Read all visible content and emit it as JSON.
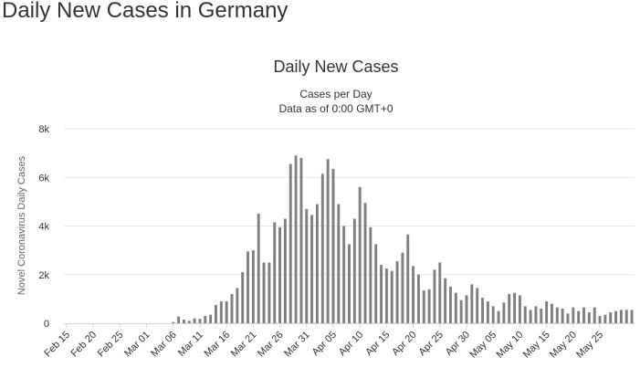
{
  "page": {
    "heading": "Daily New Cases in Germany"
  },
  "chart_data": {
    "type": "bar",
    "title": "Daily New Cases",
    "subtitle": [
      "Cases per Day",
      "Data as of 0:00 GMT+0"
    ],
    "xlabel": "",
    "ylabel": "Novel Coronavirus Daily Cases",
    "ylim": [
      0,
      8000
    ],
    "yticks": [
      {
        "value": 0,
        "label": "0"
      },
      {
        "value": 2000,
        "label": "2k"
      },
      {
        "value": 4000,
        "label": "4k"
      },
      {
        "value": 6000,
        "label": "6k"
      },
      {
        "value": 8000,
        "label": "8k"
      }
    ],
    "xtick_labels": [
      {
        "index": 0,
        "label": "Feb 15"
      },
      {
        "index": 5,
        "label": "Feb 20"
      },
      {
        "index": 10,
        "label": "Feb 25"
      },
      {
        "index": 15,
        "label": "Mar 01"
      },
      {
        "index": 20,
        "label": "Mar 06"
      },
      {
        "index": 25,
        "label": "Mar 11"
      },
      {
        "index": 30,
        "label": "Mar 16"
      },
      {
        "index": 35,
        "label": "Mar 21"
      },
      {
        "index": 40,
        "label": "Mar 26"
      },
      {
        "index": 45,
        "label": "Mar 31"
      },
      {
        "index": 50,
        "label": "Apr 05"
      },
      {
        "index": 55,
        "label": "Apr 10"
      },
      {
        "index": 60,
        "label": "Apr 15"
      },
      {
        "index": 65,
        "label": "Apr 20"
      },
      {
        "index": 70,
        "label": "Apr 25"
      },
      {
        "index": 75,
        "label": "Apr 30"
      },
      {
        "index": 80,
        "label": "May 05"
      },
      {
        "index": 85,
        "label": "May 10"
      },
      {
        "index": 90,
        "label": "May 15"
      },
      {
        "index": 95,
        "label": "May 20"
      },
      {
        "index": 100,
        "label": "May 25"
      }
    ],
    "bar_color": "#7f7f7f",
    "values": [
      0,
      0,
      0,
      0,
      0,
      0,
      0,
      0,
      0,
      0,
      0,
      0,
      0,
      0,
      0,
      0,
      0,
      0,
      0,
      0,
      50,
      280,
      150,
      100,
      200,
      180,
      300,
      350,
      750,
      900,
      900,
      1200,
      1450,
      2100,
      2950,
      3000,
      4500,
      2500,
      2500,
      4150,
      3950,
      4300,
      6550,
      6900,
      6800,
      4700,
      4450,
      4900,
      6150,
      6750,
      6350,
      4900,
      4000,
      3250,
      4300,
      5600,
      4950,
      3950,
      3250,
      2400,
      2250,
      2150,
      2550,
      2900,
      3650,
      2350,
      2000,
      1350,
      1400,
      2200,
      2500,
      1850,
      1500,
      1250,
      950,
      1150,
      1600,
      1450,
      1050,
      900,
      700,
      500,
      850,
      1200,
      1250,
      1150,
      700,
      550,
      700,
      600,
      900,
      800,
      650,
      600,
      400,
      650,
      500,
      650,
      450,
      650,
      300,
      350,
      450,
      500,
      550,
      550,
      550
    ]
  }
}
